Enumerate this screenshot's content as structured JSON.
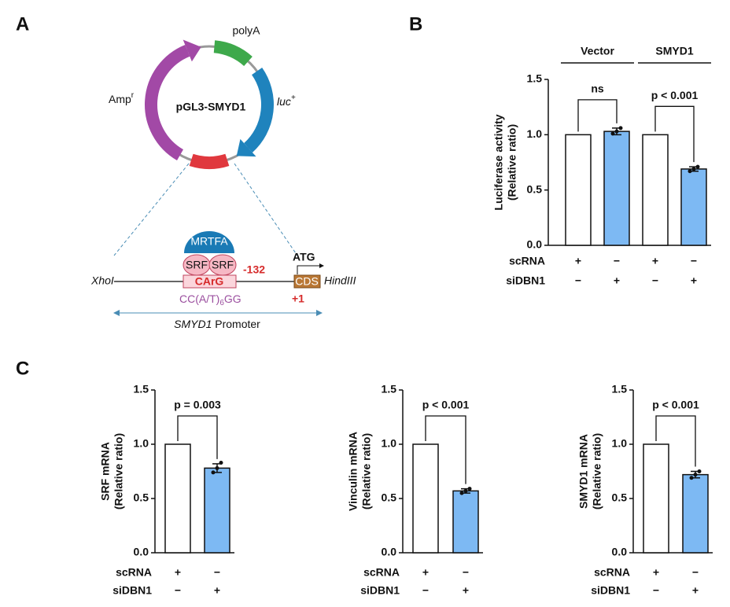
{
  "panels": [
    "A",
    "B",
    "C"
  ],
  "diagram": {
    "plasmid": "pGL3-SMYD1",
    "polya": "polyA",
    "amp": "Amp",
    "amp_sup": "r",
    "luc": "luc",
    "luc_sup": "+",
    "mrtfa": "MRTFA",
    "srf_left": "SRF",
    "srf_right": "SRF",
    "position": "-132",
    "atg": "ATG",
    "xhoi": "XhoI",
    "carg": "CArG",
    "cds": "CDS",
    "hindiii": "HindIII",
    "motif_start": "CC(A/T)",
    "motif_sub": "6",
    "motif_end": "GG",
    "tss": "+1",
    "promoter_gene": "SMYD1",
    "promoter_word": " Promoter"
  },
  "chart_data": [
    {
      "type": "bar",
      "ylabel": [
        "Luciferase activity",
        "(Relative ratio)"
      ],
      "categories": [
        null,
        null,
        null,
        null
      ],
      "values": [
        1.0,
        1.03,
        1.0,
        0.69
      ],
      "errors": [
        null,
        0.03,
        null,
        0.02
      ],
      "points": [
        null,
        [
          1.01,
          1.03,
          1.06
        ],
        null,
        [
          0.67,
          0.69,
          0.71
        ]
      ],
      "colors": [
        "#ffffff",
        "#7db9f3",
        "#ffffff",
        "#7db9f3"
      ],
      "ylim": [
        0,
        1.5
      ],
      "yticks": [
        {
          "value": 0,
          "label": "0.0"
        },
        {
          "value": 0.5,
          "label": "0.5"
        },
        {
          "value": 1,
          "label": "1.0"
        },
        {
          "value": 1.5,
          "label": "1.5"
        }
      ],
      "groups": [
        "Vector",
        "SMYD1"
      ],
      "comparisons": [
        "ns",
        "p < 0.001"
      ],
      "conditions": [
        {
          "name": "scRNA",
          "signs": [
            "+",
            "−",
            "+",
            "−"
          ]
        },
        {
          "name": "siDBN1",
          "signs": [
            "−",
            "+",
            "−",
            "+"
          ]
        }
      ]
    },
    {
      "type": "bar",
      "ylabel": [
        "SRF mRNA",
        "(Relative ratio)"
      ],
      "categories": [
        null,
        null
      ],
      "values": [
        1.0,
        0.78
      ],
      "errors": [
        null,
        0.04
      ],
      "points": [
        null,
        [
          0.74,
          0.78,
          0.83
        ]
      ],
      "colors": [
        "#ffffff",
        "#7db9f3"
      ],
      "ylim": [
        0,
        1.5
      ],
      "yticks": [
        {
          "value": 0,
          "label": "0.0"
        },
        {
          "value": 0.5,
          "label": "0.5"
        },
        {
          "value": 1,
          "label": "1.0"
        },
        {
          "value": 1.5,
          "label": "1.5"
        }
      ],
      "comparisons": [
        "p = 0.003"
      ],
      "conditions": [
        {
          "name": "scRNA",
          "signs": [
            "+",
            "−"
          ]
        },
        {
          "name": "siDBN1",
          "signs": [
            "−",
            "+"
          ]
        }
      ]
    },
    {
      "type": "bar",
      "ylabel": [
        "Vinculin mRNA",
        "(Relative ratio)"
      ],
      "categories": [
        null,
        null
      ],
      "values": [
        1.0,
        0.57
      ],
      "errors": [
        null,
        0.02
      ],
      "points": [
        null,
        [
          0.55,
          0.57,
          0.59
        ]
      ],
      "colors": [
        "#ffffff",
        "#7db9f3"
      ],
      "ylim": [
        0,
        1.5
      ],
      "yticks": [
        {
          "value": 0,
          "label": "0.0"
        },
        {
          "value": 0.5,
          "label": "0.5"
        },
        {
          "value": 1,
          "label": "1.0"
        },
        {
          "value": 1.5,
          "label": "1.5"
        }
      ],
      "comparisons": [
        "p < 0.001"
      ],
      "conditions": [
        {
          "name": "scRNA",
          "signs": [
            "+",
            "−"
          ]
        },
        {
          "name": "siDBN1",
          "signs": [
            "−",
            "+"
          ]
        }
      ]
    },
    {
      "type": "bar",
      "ylabel": [
        "SMYD1 mRNA",
        "(Relative ratio)"
      ],
      "categories": [
        null,
        null
      ],
      "values": [
        1.0,
        0.72
      ],
      "errors": [
        null,
        0.03
      ],
      "points": [
        null,
        [
          0.69,
          0.72,
          0.75
        ]
      ],
      "colors": [
        "#ffffff",
        "#7db9f3"
      ],
      "ylim": [
        0,
        1.5
      ],
      "yticks": [
        {
          "value": 0,
          "label": "0.0"
        },
        {
          "value": 0.5,
          "label": "0.5"
        },
        {
          "value": 1,
          "label": "1.0"
        },
        {
          "value": 1.5,
          "label": "1.5"
        }
      ],
      "comparisons": [
        "p < 0.001"
      ],
      "conditions": [
        {
          "name": "scRNA",
          "signs": [
            "+",
            "−"
          ]
        },
        {
          "name": "siDBN1",
          "signs": [
            "−",
            "+"
          ]
        }
      ]
    }
  ]
}
